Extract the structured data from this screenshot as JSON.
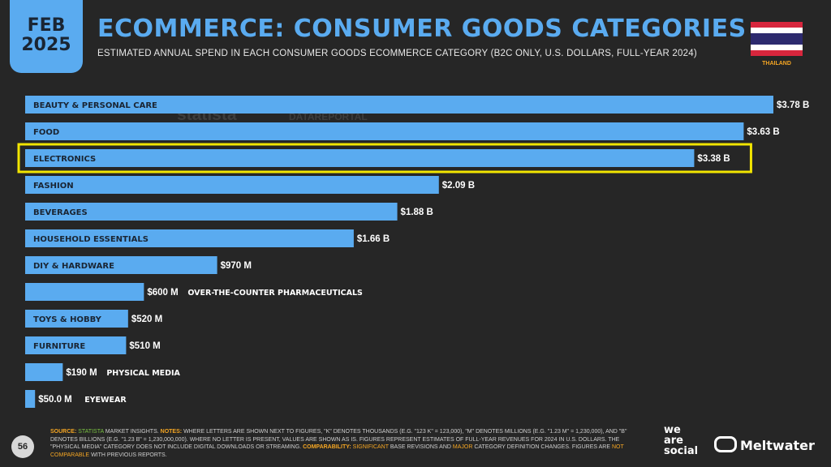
{
  "header": {
    "month": "FEB",
    "year": "2025",
    "title": "ECOMMERCE: CONSUMER GOODS CATEGORIES",
    "subtitle": "ESTIMATED ANNUAL SPEND IN EACH CONSUMER GOODS ECOMMERCE CATEGORY (B2C ONLY, U.S. DOLLARS, FULL-YEAR 2024)",
    "country": "THAILAND"
  },
  "watermark": {
    "statista": "statista",
    "datareportal": "DATAREPORTAL"
  },
  "colors": {
    "bar": "#5aabf0",
    "highlight": "#f2e500",
    "background": "#262626",
    "accent": "#f5a623"
  },
  "chart_data": {
    "type": "bar",
    "orientation": "horizontal",
    "categories": [
      "BEAUTY & PERSONAL CARE",
      "FOOD",
      "ELECTRONICS",
      "FASHION",
      "BEVERAGES",
      "HOUSEHOLD ESSENTIALS",
      "DIY & HARDWARE",
      "OVER-THE-COUNTER PHARMACEUTICALS",
      "TOYS & HOBBY",
      "FURNITURE",
      "PHYSICAL MEDIA",
      "EYEWEAR"
    ],
    "values": [
      3780000000,
      3630000000,
      3380000000,
      2090000000,
      1880000000,
      1660000000,
      970000000,
      600000000,
      520000000,
      510000000,
      190000000,
      50000000
    ],
    "value_labels": [
      "$3.78 B",
      "$3.63 B",
      "$3.38 B",
      "$2.09 B",
      "$1.88 B",
      "$1.66 B",
      "$970 M",
      "$600 M",
      "$520 M",
      "$510 M",
      "$190 M",
      "$50.0 M"
    ],
    "highlighted": "ELECTRONICS"
  },
  "footer": {
    "source_label": "SOURCE:",
    "source": "STATISTA",
    "source_rest": "MARKET INSIGHTS.",
    "notes_label": "NOTES:",
    "notes": "WHERE LETTERS ARE SHOWN NEXT TO FIGURES, \"K\" DENOTES THOUSANDS (E.G. \"123 K\" = 123,000), \"M\" DENOTES MILLIONS (E.G. \"1.23 M\" = 1,230,000), AND \"B\" DENOTES BILLIONS (E.G. \"1.23 B\" = 1,230,000,000). WHERE NO LETTER IS PRESENT, VALUES ARE SHOWN AS IS. FIGURES REPRESENT ESTIMATES OF FULL-YEAR REVENUES FOR 2024 IN U.S. DOLLARS. THE \"PHYSICAL MEDIA\" CATEGORY DOES NOT INCLUDE DIGITAL DOWNLOADS OR STREAMING.",
    "comparability_label": "COMPARABILITY:",
    "comp_1": "SIGNIFICANT",
    "comp_2": "BASE REVISIONS AND",
    "comp_3": "MAJOR",
    "comp_4": "CATEGORY DEFINITION CHANGES. FIGURES ARE",
    "comp_5": "NOT COMPARABLE",
    "comp_6": "WITH PREVIOUS REPORTS.",
    "page": "56",
    "was_1": "we",
    "was_2": "are",
    "was_3": "social",
    "meltwater": "Meltwater"
  }
}
